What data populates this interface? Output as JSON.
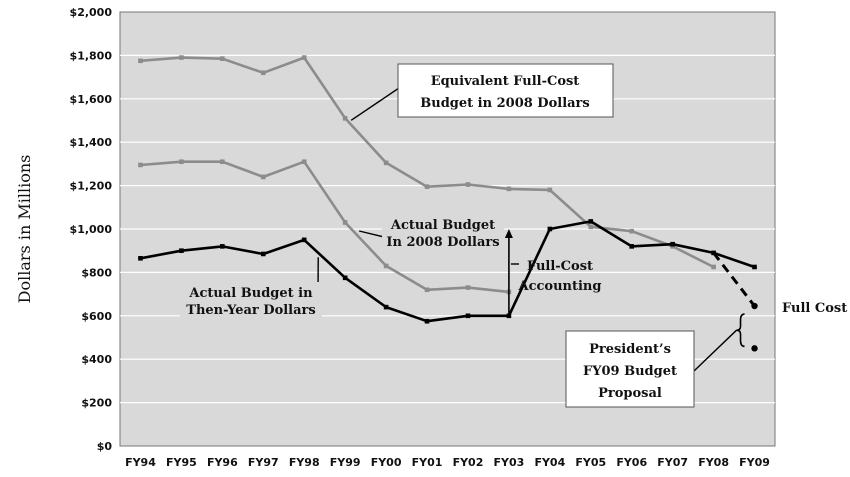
{
  "chart_data": {
    "type": "line",
    "ylabel": "Dollars in Millions",
    "xlabel": "",
    "title": "",
    "categories": [
      "FY94",
      "FY95",
      "FY96",
      "FY97",
      "FY98",
      "FY99",
      "FY00",
      "FY01",
      "FY02",
      "FY03",
      "FY04",
      "FY05",
      "FY06",
      "FY07",
      "FY08",
      "FY09"
    ],
    "y_tick_labels": [
      "$0",
      "$200",
      "$400",
      "$600",
      "$800",
      "$1,000",
      "$1,200",
      "$1,400",
      "$1,600",
      "$1,800",
      "$2,000"
    ],
    "ylim": [
      0,
      2000
    ],
    "grid": true,
    "series": [
      {
        "color": "#8c8c8c",
        "values": [
          1775,
          1790,
          1785,
          1720,
          1790,
          1510,
          1305,
          1195,
          1205,
          1185,
          1180,
          1010,
          990,
          920,
          825,
          null
        ]
      },
      {
        "color": "#8c8c8c",
        "values": [
          1295,
          1310,
          1310,
          1240,
          1310,
          1030,
          830,
          720,
          730,
          710,
          null,
          null,
          null,
          null,
          null,
          null
        ]
      },
      {
        "color": "#000000",
        "values": [
          865,
          900,
          920,
          885,
          950,
          775,
          640,
          575,
          600,
          600,
          1000,
          1035,
          920,
          930,
          890,
          825
        ]
      }
    ],
    "projection": {
      "full_cost_value": 645,
      "proposal_value": 450
    },
    "annotations": {
      "equivalent_full_cost": [
        "Equivalent Full-Cost",
        "Budget in 2008 Dollars"
      ],
      "actual_2008": [
        "Actual Budget",
        "In 2008 Dollars"
      ],
      "actual_then_year": [
        "Actual Budget in",
        "Then-Year Dollars"
      ],
      "full_cost_accounting": [
        "Full-Cost",
        "Accounting"
      ],
      "full_cost": "Full Cost",
      "presidents_proposal": [
        "President’s",
        "FY09 Budget",
        "Proposal"
      ]
    },
    "colors": {
      "plot_background": "#d9d9d9",
      "gridline": "#ffffff",
      "gray_series": "#8c8c8c",
      "black_series": "#000000"
    }
  }
}
